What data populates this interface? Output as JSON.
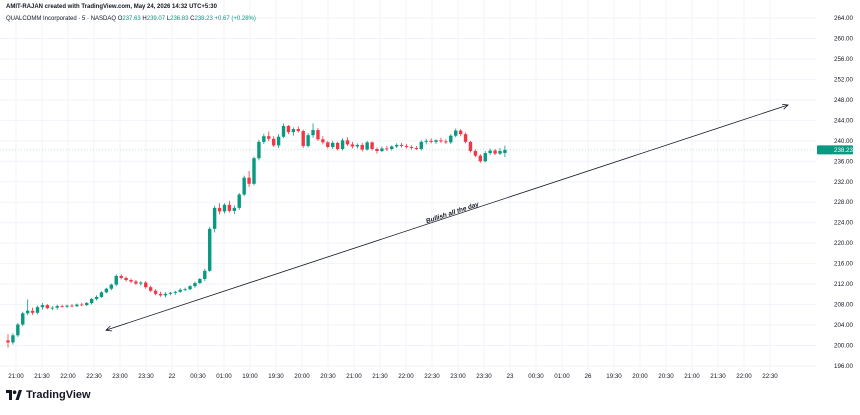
{
  "header": {
    "credit": "AMIT-RAJAN created with TradingView.com, May 24, 2026 14:32 UTC+5:30",
    "symbol": "QUALCOMM Incorporated · 5 · NASDAQ",
    "open_label": "O",
    "open": "237.63",
    "high_label": "H",
    "high": "239.07",
    "low_label": "L",
    "low": "236.83",
    "close_label": "C",
    "close": "238.23",
    "change": "+0.67 (+0.28%)"
  },
  "brand": {
    "name": "TradingView",
    "logo_icon": "tradingview-logo-icon"
  },
  "colors": {
    "up": "#089981",
    "down": "#f23645",
    "price_tag": "#089981",
    "grid": "#f0f3fa",
    "axis_text": "#131722"
  },
  "chart_data": {
    "type": "candlestick",
    "title": "",
    "xlabel": "",
    "ylabel": "",
    "ylim": [
      196,
      264
    ],
    "y_ticks": [
      "196.00",
      "200.00",
      "204.00",
      "208.00",
      "212.00",
      "216.00",
      "220.00",
      "224.00",
      "228.00",
      "232.00",
      "236.00",
      "240.00",
      "244.00",
      "248.00",
      "252.00",
      "256.00",
      "260.00",
      "264.00"
    ],
    "x_ticks": [
      "21:00",
      "21:30",
      "22:00",
      "22:30",
      "23:00",
      "23:30",
      "22",
      "00:30",
      "01:00",
      "19:00",
      "19:30",
      "20:00",
      "20:30",
      "21:00",
      "21:30",
      "22:00",
      "22:30",
      "23:00",
      "23:30",
      "23",
      "00:30",
      "01:00",
      "26",
      "19:30",
      "20:00",
      "20:30",
      "21:00",
      "21:30",
      "22:00",
      "22:30"
    ],
    "last_price": "238.23",
    "annotation": {
      "text": "Bullish all the day",
      "type": "arrow",
      "from_price": 203.0,
      "to_price": 247.0
    },
    "candles": [
      [
        201.0,
        202.2,
        199.6,
        200.6
      ],
      [
        200.6,
        202.4,
        200.2,
        202.0
      ],
      [
        202.0,
        204.4,
        201.7,
        204.1
      ],
      [
        204.1,
        206.6,
        203.8,
        206.3
      ],
      [
        206.3,
        209.0,
        205.9,
        206.8
      ],
      [
        206.8,
        207.4,
        206.0,
        206.4
      ],
      [
        206.4,
        207.8,
        206.1,
        207.5
      ],
      [
        207.5,
        208.3,
        207.0,
        207.9
      ],
      [
        207.9,
        208.1,
        207.1,
        207.3
      ],
      [
        207.3,
        207.7,
        206.9,
        207.4
      ],
      [
        207.4,
        208.0,
        207.0,
        207.7
      ],
      [
        207.7,
        208.0,
        207.4,
        207.6
      ],
      [
        207.6,
        208.0,
        207.3,
        207.8
      ],
      [
        207.8,
        208.1,
        207.5,
        207.7
      ],
      [
        207.7,
        208.2,
        207.5,
        208.0
      ],
      [
        208.0,
        208.4,
        207.7,
        207.9
      ],
      [
        207.9,
        208.5,
        207.7,
        208.3
      ],
      [
        208.3,
        209.3,
        208.0,
        209.1
      ],
      [
        209.1,
        209.8,
        208.8,
        209.5
      ],
      [
        209.5,
        210.6,
        209.3,
        210.4
      ],
      [
        210.4,
        211.3,
        210.2,
        211.1
      ],
      [
        211.1,
        212.1,
        210.8,
        211.9
      ],
      [
        211.9,
        213.9,
        211.6,
        213.6
      ],
      [
        213.6,
        213.9,
        212.9,
        213.2
      ],
      [
        213.2,
        213.5,
        212.5,
        212.8
      ],
      [
        212.8,
        213.1,
        212.2,
        212.5
      ],
      [
        212.5,
        212.8,
        211.8,
        212.1
      ],
      [
        212.1,
        212.6,
        211.7,
        212.3
      ],
      [
        212.3,
        212.6,
        211.1,
        211.4
      ],
      [
        211.4,
        211.7,
        210.4,
        210.7
      ],
      [
        210.7,
        211.0,
        209.8,
        210.1
      ],
      [
        210.1,
        210.5,
        209.5,
        209.8
      ],
      [
        209.8,
        210.4,
        209.4,
        210.1
      ],
      [
        210.1,
        210.5,
        209.8,
        210.3
      ],
      [
        210.3,
        210.7,
        209.9,
        210.5
      ],
      [
        210.5,
        211.2,
        210.3,
        210.9
      ],
      [
        210.9,
        211.3,
        210.6,
        211.0
      ],
      [
        211.0,
        211.8,
        210.8,
        211.6
      ],
      [
        211.6,
        212.5,
        211.3,
        212.2
      ],
      [
        212.2,
        213.2,
        212.0,
        213.0
      ],
      [
        213.0,
        215.0,
        212.6,
        214.6
      ],
      [
        214.6,
        223.2,
        214.4,
        222.8
      ],
      [
        222.8,
        227.3,
        222.1,
        226.9
      ],
      [
        226.9,
        227.8,
        225.6,
        226.2
      ],
      [
        226.2,
        227.8,
        225.8,
        227.5
      ],
      [
        227.5,
        228.3,
        226.0,
        226.3
      ],
      [
        226.3,
        227.4,
        225.7,
        226.9
      ],
      [
        226.9,
        229.8,
        226.5,
        229.5
      ],
      [
        229.5,
        233.2,
        229.2,
        232.8
      ],
      [
        232.8,
        234.1,
        231.0,
        231.6
      ],
      [
        231.6,
        236.9,
        231.3,
        236.6
      ],
      [
        236.6,
        240.2,
        236.2,
        239.8
      ],
      [
        239.8,
        241.4,
        239.4,
        240.9
      ],
      [
        240.9,
        241.8,
        239.9,
        240.4
      ],
      [
        240.4,
        240.9,
        238.8,
        239.1
      ],
      [
        239.1,
        241.3,
        238.6,
        240.8
      ],
      [
        240.8,
        243.4,
        240.5,
        242.9
      ],
      [
        242.9,
        243.1,
        241.3,
        241.7
      ],
      [
        241.7,
        242.6,
        241.0,
        242.3
      ],
      [
        242.3,
        242.8,
        241.6,
        241.9
      ],
      [
        241.9,
        242.2,
        238.6,
        239.0
      ],
      [
        239.0,
        241.5,
        238.7,
        241.1
      ],
      [
        241.1,
        243.4,
        240.6,
        242.1
      ],
      [
        242.1,
        242.5,
        240.0,
        240.3
      ],
      [
        240.3,
        240.9,
        239.3,
        239.7
      ],
      [
        239.7,
        240.0,
        238.5,
        238.8
      ],
      [
        238.8,
        240.0,
        238.4,
        239.6
      ],
      [
        239.6,
        239.8,
        238.1,
        238.4
      ],
      [
        238.4,
        240.5,
        238.1,
        240.1
      ],
      [
        240.1,
        240.7,
        239.0,
        239.3
      ],
      [
        239.3,
        239.8,
        238.5,
        238.9
      ],
      [
        238.9,
        239.5,
        238.5,
        239.2
      ],
      [
        239.2,
        239.6,
        237.9,
        238.3
      ],
      [
        238.3,
        240.0,
        238.1,
        239.7
      ],
      [
        239.7,
        239.9,
        238.1,
        238.4
      ],
      [
        238.4,
        238.7,
        237.5,
        238.0
      ],
      [
        238.0,
        238.9,
        237.8,
        238.5
      ],
      [
        238.5,
        239.0,
        238.0,
        238.4
      ],
      [
        238.4,
        239.1,
        238.1,
        238.9
      ],
      [
        238.9,
        239.5,
        238.6,
        239.2
      ],
      [
        239.2,
        239.6,
        238.7,
        239.0
      ],
      [
        239.0,
        239.4,
        238.5,
        238.8
      ],
      [
        238.8,
        239.1,
        238.3,
        238.6
      ],
      [
        238.6,
        239.0,
        238.2,
        238.4
      ],
      [
        238.4,
        240.1,
        238.1,
        239.8
      ],
      [
        239.8,
        240.4,
        239.3,
        240.0
      ],
      [
        240.0,
        240.5,
        239.5,
        239.8
      ],
      [
        239.8,
        240.3,
        239.4,
        240.1
      ],
      [
        240.1,
        240.6,
        239.6,
        239.9
      ],
      [
        239.9,
        240.3,
        239.4,
        239.7
      ],
      [
        239.7,
        241.3,
        239.4,
        241.0
      ],
      [
        241.0,
        242.4,
        240.7,
        242.0
      ],
      [
        242.0,
        242.3,
        240.9,
        241.3
      ],
      [
        241.3,
        241.6,
        239.5,
        239.8
      ],
      [
        239.8,
        240.0,
        237.7,
        238.0
      ],
      [
        238.0,
        238.3,
        236.8,
        237.1
      ],
      [
        237.1,
        237.4,
        235.7,
        236.0
      ],
      [
        236.0,
        238.0,
        235.8,
        237.6
      ],
      [
        237.6,
        238.5,
        237.2,
        238.1
      ],
      [
        238.1,
        238.4,
        237.2,
        237.5
      ],
      [
        237.5,
        238.6,
        237.2,
        238.0
      ],
      [
        237.63,
        239.07,
        236.83,
        238.23
      ]
    ]
  }
}
